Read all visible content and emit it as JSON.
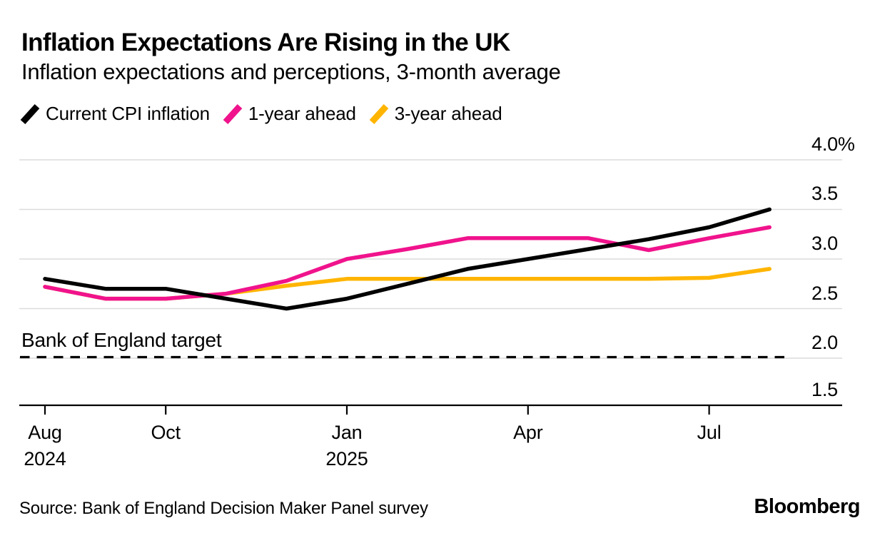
{
  "header": {
    "title": "Inflation Expectations Are Rising in the UK",
    "subtitle": "Inflation expectations and perceptions, 3-month average"
  },
  "legend": [
    {
      "label": "Current CPI inflation",
      "color": "#000000",
      "icon": "diagonal-line-swatch"
    },
    {
      "label": "1-year ahead",
      "color": "#F0138C",
      "icon": "diagonal-line-swatch"
    },
    {
      "label": "3-year ahead",
      "color": "#FFB500",
      "icon": "diagonal-line-swatch"
    }
  ],
  "annotation": {
    "target_label": "Bank of England target"
  },
  "footer": {
    "source": "Source: Bank of England Decision Maker Panel survey",
    "brand": "Bloomberg"
  },
  "chart_data": {
    "type": "line",
    "title": "Inflation Expectations Are Rising in the UK",
    "subtitle": "Inflation expectations and perceptions, 3-month average",
    "unit": "%",
    "grid": true,
    "legend_position": "top",
    "ylim": [
      1.5,
      4.0
    ],
    "y_ticks": [
      "4.0%",
      "3.5",
      "3.0",
      "2.5",
      "2.0",
      "1.5"
    ],
    "y_tick_values": [
      4.0,
      3.5,
      3.0,
      2.5,
      2.0,
      1.5
    ],
    "x": [
      "Aug 2024",
      "Sep 2024",
      "Oct 2024",
      "Nov 2024",
      "Dec 2024",
      "Jan 2025",
      "Feb 2025",
      "Mar 2025",
      "Apr 2025",
      "May 2025",
      "Jun 2025",
      "Jul 2025",
      "Aug 2025"
    ],
    "x_tick_labels": [
      {
        "index": 0,
        "label": "Aug",
        "sub": "2024"
      },
      {
        "index": 2,
        "label": "Oct"
      },
      {
        "index": 5,
        "label": "Jan",
        "sub": "2025"
      },
      {
        "index": 8,
        "label": "Apr"
      },
      {
        "index": 11,
        "label": "Jul"
      }
    ],
    "series": [
      {
        "name": "Current CPI inflation",
        "color": "#000000",
        "values": [
          2.8,
          2.7,
          2.7,
          2.6,
          2.5,
          2.6,
          2.75,
          2.9,
          3.0,
          3.1,
          3.2,
          3.32,
          3.5
        ]
      },
      {
        "name": "1-year ahead",
        "color": "#F0138C",
        "values": [
          2.72,
          2.6,
          2.6,
          2.65,
          2.78,
          3.0,
          3.1,
          3.21,
          3.21,
          3.21,
          3.09,
          3.21,
          3.32
        ]
      },
      {
        "name": "3-year ahead",
        "color": "#FFB500",
        "values": [
          2.72,
          2.6,
          2.6,
          2.65,
          2.73,
          2.8,
          2.8,
          2.8,
          2.8,
          2.8,
          2.8,
          2.81,
          2.9
        ]
      }
    ],
    "reference_line": {
      "label": "Bank of England target",
      "value": 2.0,
      "style": "dashed",
      "color": "#000000"
    }
  }
}
